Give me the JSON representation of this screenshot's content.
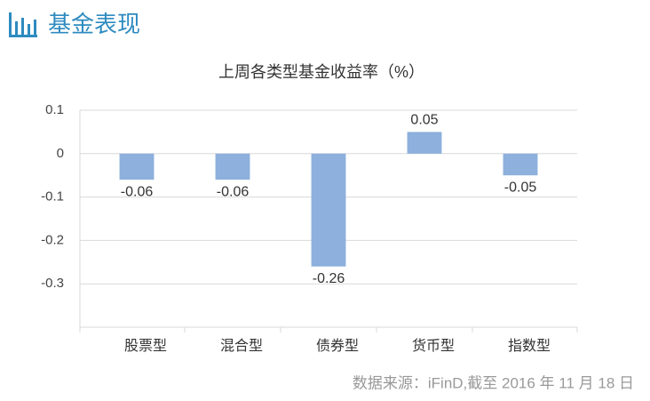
{
  "header": {
    "title": "基金表现"
  },
  "chart_data": {
    "type": "bar",
    "title": "上周各类型基金收益率（%）",
    "categories": [
      "股票型",
      "混合型",
      "债券型",
      "货币型",
      "指数型"
    ],
    "values": [
      -0.06,
      -0.06,
      -0.26,
      0.05,
      -0.05
    ],
    "color": "#8db0dc",
    "ylim": [
      -0.4,
      0.1
    ],
    "yticks": [
      -0.3,
      -0.2,
      -0.1,
      0,
      0.1
    ],
    "grid": true
  },
  "source": "数据来源：iFinD,截至 2016 年 11 月 18 日"
}
